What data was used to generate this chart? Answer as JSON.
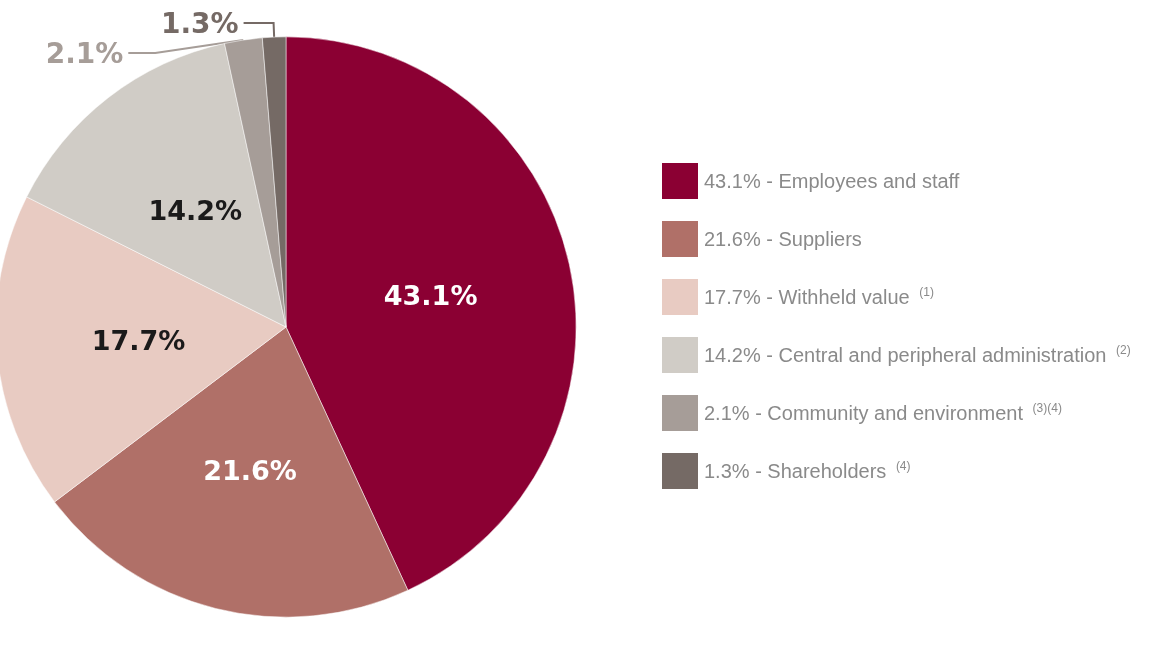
{
  "chart_data": {
    "type": "pie",
    "categories": [
      "43.1% - Employees and staff",
      "21.6% - Suppliers",
      "17.7% - Withheld value $^{(1)}$",
      "14.2% - Central and peripheral administration $^{(2)}$",
      "2.1% - Community and environment $^{(3)(4)}$",
      "1.3% - Shareholders $^{(4)}$"
    ],
    "values": [
      43.1,
      21.6,
      17.7,
      14.2,
      2.1,
      1.3
    ],
    "value_labels": [
      "43.1%",
      "21.6%",
      "17.7%",
      "14.2%",
      "2.1%",
      "1.3%"
    ],
    "colors": [
      "#8b0033",
      "#b07068",
      "#e8cbc2",
      "#d0ccc6",
      "#a69d98",
      "#756a65"
    ],
    "legend": "right"
  }
}
